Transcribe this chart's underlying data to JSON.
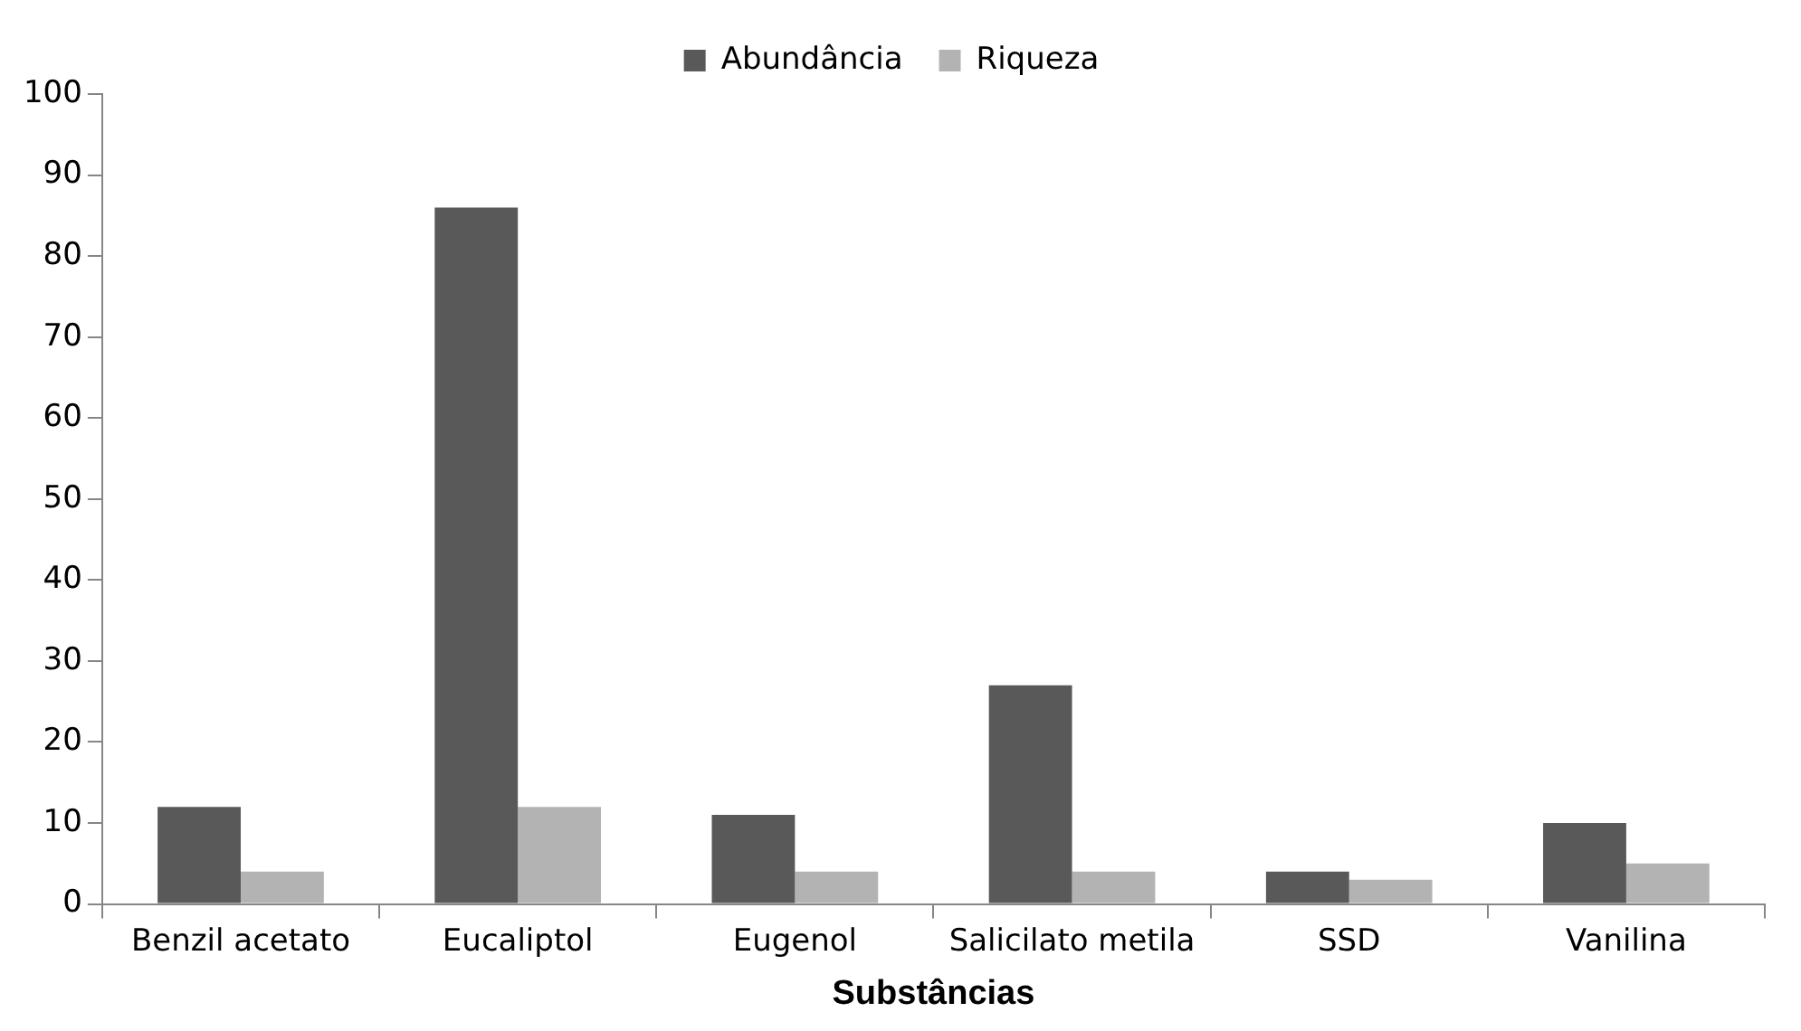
{
  "chart_data": {
    "type": "bar",
    "xlabel": "Substâncias",
    "categories": [
      "Benzil acetato",
      "Eucaliptol",
      "Eugenol",
      "Salicilato metila",
      "SSD",
      "Vanilina"
    ],
    "series": [
      {
        "name": "Abundância",
        "color": "#595959",
        "values": [
          12,
          86,
          11,
          27,
          4,
          10
        ]
      },
      {
        "name": "Riqueza",
        "color": "#b3b3b3",
        "values": [
          4,
          12,
          4,
          4,
          3,
          5
        ]
      }
    ],
    "ylim": [
      0,
      100
    ],
    "yticks": [
      0,
      10,
      20,
      30,
      40,
      50,
      60,
      70,
      80,
      90,
      100
    ],
    "grid": false,
    "legend": "top"
  }
}
